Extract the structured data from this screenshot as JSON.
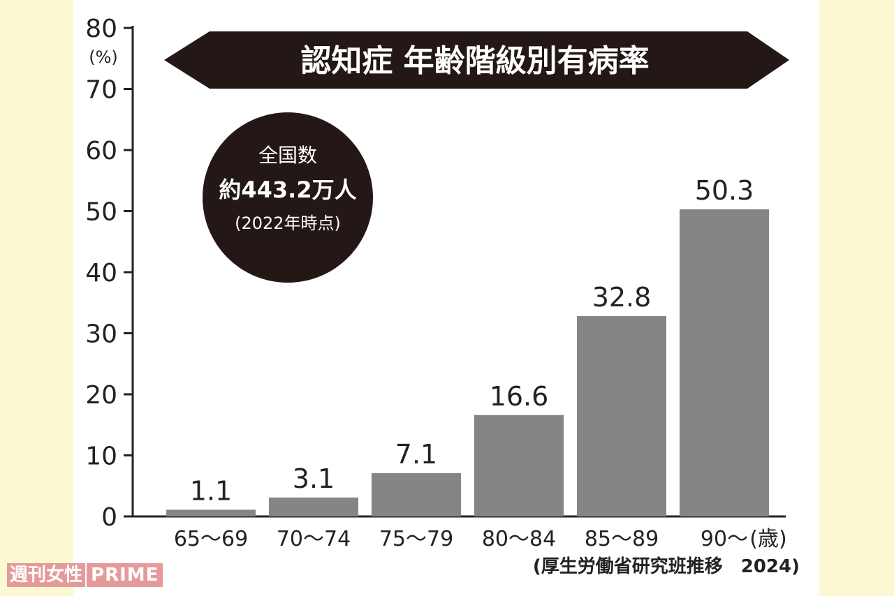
{
  "chart_data": {
    "type": "bar",
    "title": "認知症 年齢階級別有病率",
    "y_unit": "(%)",
    "x_unit": "(歳)",
    "ylim": [
      0,
      80
    ],
    "y_ticks": [
      "0",
      "10",
      "20",
      "30",
      "40",
      "50",
      "60",
      "70",
      "80"
    ],
    "categories": [
      "65～69",
      "70～74",
      "75～79",
      "80～84",
      "85～89",
      "90～"
    ],
    "values": [
      1.1,
      3.1,
      7.1,
      16.6,
      32.8,
      50.3
    ],
    "value_labels": [
      "1.1",
      "3.1",
      "7.1",
      "16.6",
      "32.8",
      "50.3"
    ],
    "bar_color": "#858585",
    "grid": false,
    "annotation": {
      "line1": "全国数",
      "line2": "約443.2万人",
      "line3": "(2022年時点)"
    },
    "source": "(厚生労働省研究班推移　2024)"
  },
  "watermark": {
    "part1": "週刊女性",
    "part2": "PRIME"
  },
  "colors": {
    "background": "#fcf9d2",
    "panel": "#ffffff",
    "banner": "#231815",
    "bars": "#858585"
  }
}
